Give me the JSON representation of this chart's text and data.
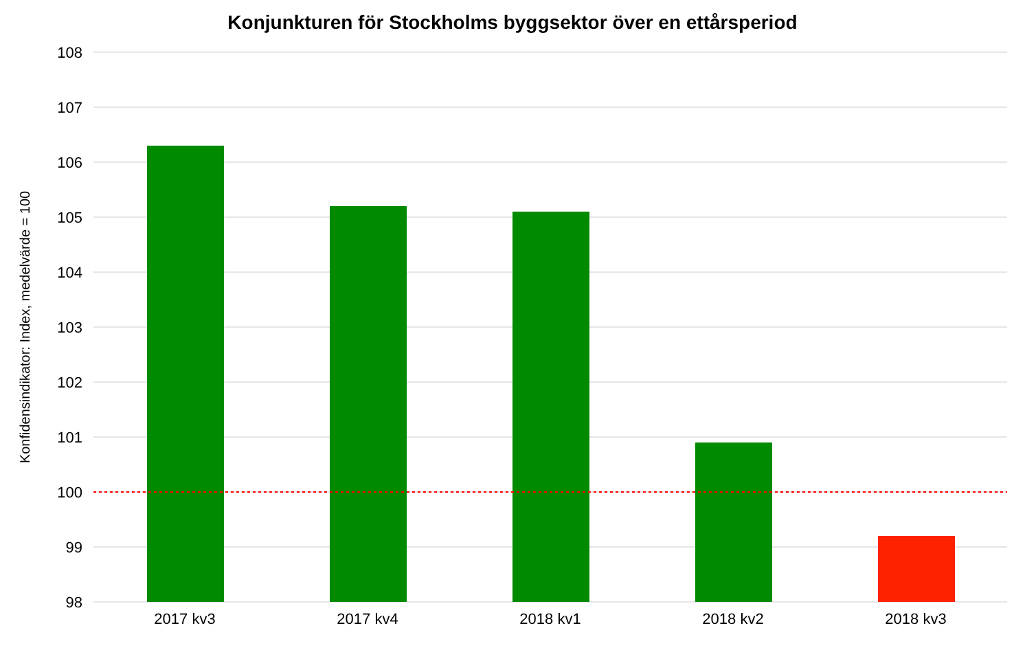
{
  "chart_data": {
    "type": "bar",
    "title": "Konjunkturen för Stockholms byggsektor över en ettårsperiod",
    "ylabel": "Konfidensindikator: Index, medelvärde = 100",
    "categories": [
      "2017 kv3",
      "2017 kv4",
      "2018 kv1",
      "2018 kv2",
      "2018 kv3"
    ],
    "values": [
      106.3,
      105.2,
      105.1,
      100.9,
      99.2
    ],
    "colors": [
      "#008a00",
      "#008a00",
      "#008a00",
      "#008a00",
      "#ff2200"
    ],
    "ylim": [
      98,
      108
    ],
    "yticks": [
      98,
      99,
      100,
      101,
      102,
      103,
      104,
      105,
      106,
      107,
      108
    ],
    "grid": "y",
    "ref_lines": [
      {
        "axis": "y",
        "value": 100,
        "color": "#ff0000",
        "line_style": "dotted"
      }
    ]
  }
}
